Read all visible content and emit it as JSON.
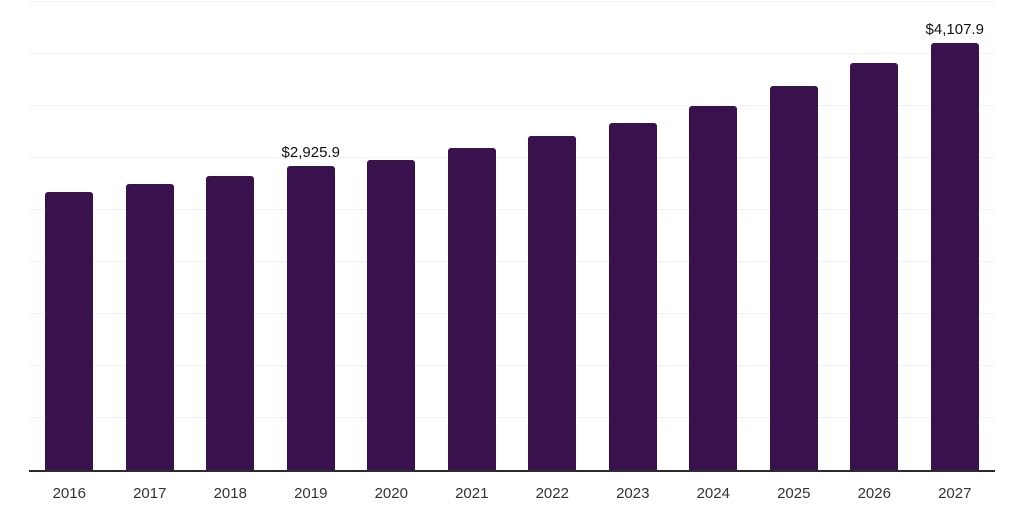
{
  "chart_data": {
    "type": "bar",
    "title": "",
    "xlabel": "",
    "ylabel": "",
    "categories": [
      "2016",
      "2017",
      "2018",
      "2019",
      "2020",
      "2021",
      "2022",
      "2023",
      "2024",
      "2025",
      "2026",
      "2027"
    ],
    "values": [
      2670,
      2750,
      2825,
      2925.9,
      2980,
      3095,
      3215,
      3340,
      3500,
      3690,
      3910,
      4107.9
    ],
    "data_labels": [
      {
        "index": 3,
        "text": "$2,925.9"
      },
      {
        "index": 11,
        "text": "$4,107.9"
      }
    ],
    "ylim": [
      0,
      4500
    ],
    "gridline_step": 500,
    "grid": "horizontal-only",
    "y_tick_labels_visible": false,
    "legend": "none",
    "colors": {
      "bar": "#38114d",
      "gridline": "#f2f2f2",
      "axis_line": "#2b2b2b",
      "tick_label": "#333333",
      "data_label": "#111111",
      "background": "#ffffff"
    }
  }
}
